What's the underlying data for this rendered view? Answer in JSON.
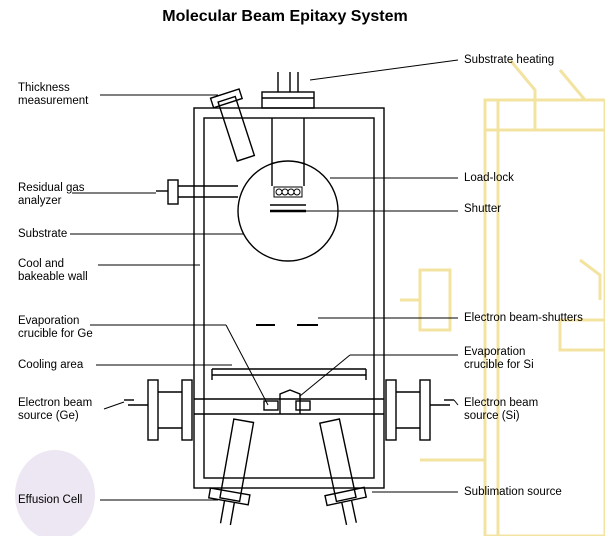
{
  "title": "Molecular Beam Epitaxy System",
  "labels": {
    "thickness": "Thickness\nmeasurement",
    "residual_gas": "Residual gas\nanalyzer",
    "substrate": "Substrate",
    "cool_wall": "Cool and\nbakeable wall",
    "crucible_ge": "Evaporation\ncrucible for Ge",
    "cooling_area": "Cooling area",
    "ebeam_ge": "Electron beam\nsource (Ge)",
    "effusion": "Effusion Cell",
    "substrate_heating": "Substrate heating",
    "load_lock": "Load-lock",
    "shutter": "Shutter",
    "ebeam_shutters": "Electron beam-shutters",
    "crucible_si": "Evaporation\ncrucible for Si",
    "ebeam_si": "Electron beam\nsource (Si)",
    "sublimation": "Sublimation source"
  },
  "colors": {
    "line": "#000000",
    "watermark": "#f3e3a0",
    "shade": "#d9d2e8"
  }
}
